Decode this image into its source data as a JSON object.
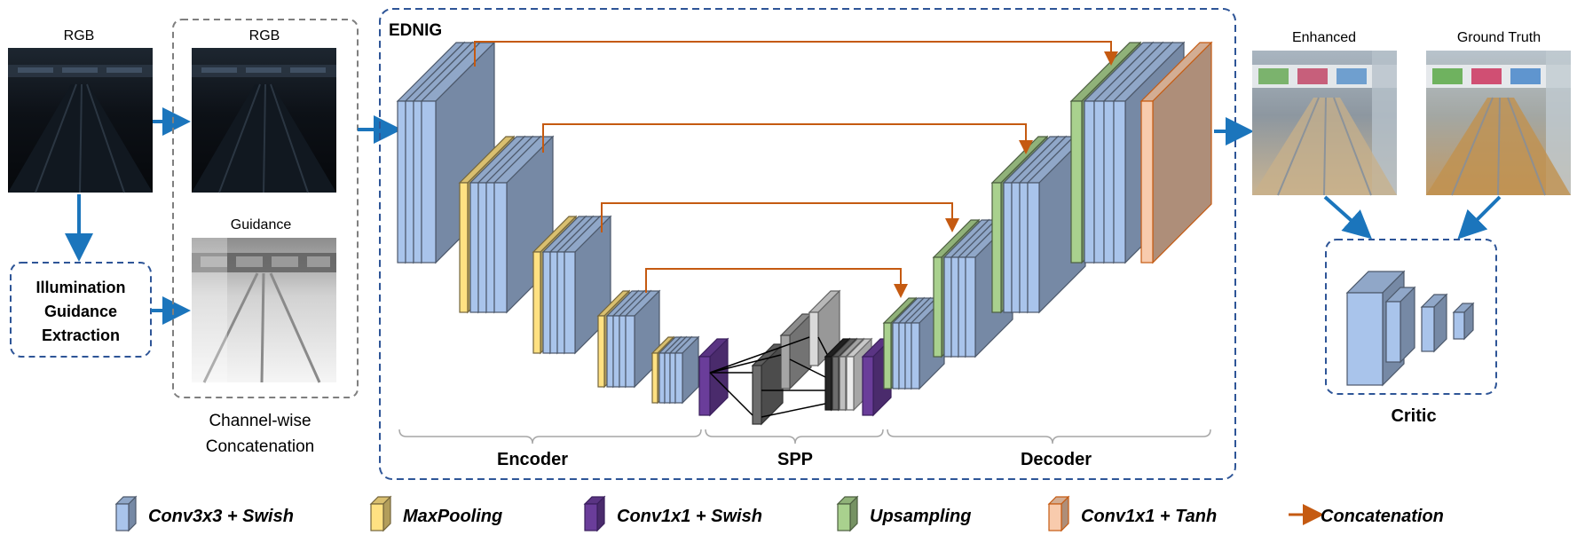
{
  "input": {
    "rgb_label": "RGB",
    "guidance_block_label": "Illumination\nGuidance\nExtraction"
  },
  "concat": {
    "rgb_label": "RGB",
    "guidance_label": "Guidance",
    "caption": "Channel-wise\nConcatenation"
  },
  "network": {
    "name": "EDNIG",
    "encoder_label": "Encoder",
    "spp_label": "SPP",
    "decoder_label": "Decoder"
  },
  "outputs": {
    "enhanced_label": "Enhanced",
    "ground_truth_label": "Ground Truth",
    "critic_label": "Critic"
  },
  "legend": [
    {
      "label": "Conv3x3 + Swish",
      "color": "#a9c4eb",
      "icon": "blue-block-icon"
    },
    {
      "label": "MaxPooling",
      "color": "#ffe182",
      "icon": "yellow-block-icon"
    },
    {
      "label": "Conv1x1 + Swish",
      "color": "#6a3d9a",
      "icon": "purple-block-icon"
    },
    {
      "label": "Upsampling",
      "color": "#a9d18e",
      "icon": "green-block-icon"
    },
    {
      "label": "Conv1x1 + Tanh",
      "color": "#f8cbad",
      "icon": "orange-block-icon"
    },
    {
      "label": "Concatenation",
      "color": "#c55a11",
      "icon": "orange-arrow-icon"
    }
  ],
  "colors": {
    "conv": "#a9c4eb",
    "pool": "#ffe182",
    "conv1x1": "#6a3d9a",
    "upsample": "#a9d18e",
    "tanh": "#f8cbad",
    "skip_arrow": "#c55a11",
    "flow_arrow": "#1b75bc",
    "dashed_border": "#2e5597"
  }
}
